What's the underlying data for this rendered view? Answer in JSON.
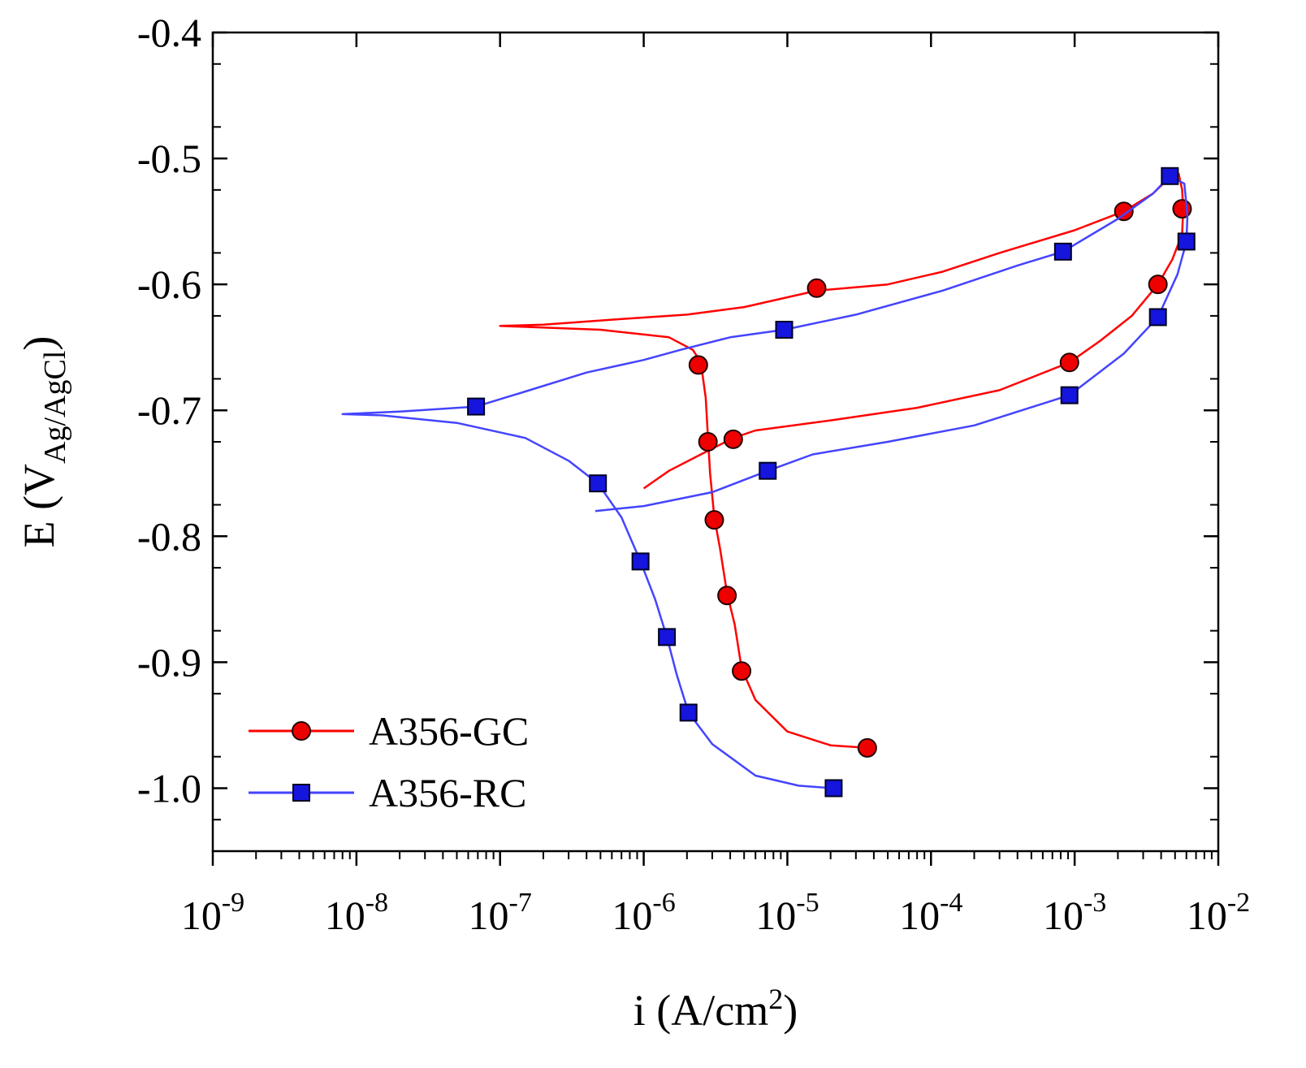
{
  "chart_data": {
    "type": "line",
    "title": "",
    "xlabel": "i (A/cm2)",
    "xlabel_parts": {
      "base": "i (A/cm",
      "sup": "2",
      "close": ")"
    },
    "ylabel": "E (VAg/AgCl)",
    "ylabel_parts": {
      "base": "E (V",
      "sub": "Ag/AgCl",
      "close": ")"
    },
    "x_scale": "log",
    "xlim": [
      1e-09,
      0.01
    ],
    "ylim": [
      -1.05,
      -0.4
    ],
    "x_ticks": [
      {
        "base": "10",
        "exp": "-9",
        "value": 1e-09
      },
      {
        "base": "10",
        "exp": "-8",
        "value": 1e-08
      },
      {
        "base": "10",
        "exp": "-7",
        "value": 1e-07
      },
      {
        "base": "10",
        "exp": "-6",
        "value": 1e-06
      },
      {
        "base": "10",
        "exp": "-5",
        "value": 1e-05
      },
      {
        "base": "10",
        "exp": "-4",
        "value": 0.0001
      },
      {
        "base": "10",
        "exp": "-3",
        "value": 0.001
      },
      {
        "base": "10",
        "exp": "-2",
        "value": 0.01
      }
    ],
    "y_ticks": [
      {
        "label": "-0.4",
        "value": -0.4
      },
      {
        "label": "-0.5",
        "value": -0.5
      },
      {
        "label": "-0.6",
        "value": -0.6
      },
      {
        "label": "-0.7",
        "value": -0.7
      },
      {
        "label": "-0.8",
        "value": -0.8
      },
      {
        "label": "-0.9",
        "value": -0.9
      },
      {
        "label": "-1.0",
        "value": -1.0
      }
    ],
    "legend_position": "bottom-left",
    "series": [
      {
        "name": "A356-GC",
        "color": "#ff0000",
        "marker": "circle",
        "marker_fill": "#ee0000",
        "curve": [
          [
            3.6e-05,
            -0.968
          ],
          [
            2e-05,
            -0.966
          ],
          [
            1e-05,
            -0.955
          ],
          [
            6e-06,
            -0.93
          ],
          [
            4.8e-06,
            -0.905
          ],
          [
            4.3e-06,
            -0.87
          ],
          [
            3.8e-06,
            -0.845
          ],
          [
            3.4e-06,
            -0.81
          ],
          [
            3.1e-06,
            -0.785
          ],
          [
            2.9e-06,
            -0.75
          ],
          [
            2.8e-06,
            -0.722
          ],
          [
            2.7e-06,
            -0.69
          ],
          [
            2.5e-06,
            -0.662
          ],
          [
            2.2e-06,
            -0.652
          ],
          [
            1.5e-06,
            -0.642
          ],
          [
            5e-07,
            -0.636
          ],
          [
            1e-07,
            -0.633
          ],
          [
            2e-07,
            -0.632
          ],
          [
            6e-07,
            -0.628
          ],
          [
            2e-06,
            -0.624
          ],
          [
            5e-06,
            -0.618
          ],
          [
            1.6e-05,
            -0.605
          ],
          [
            5e-05,
            -0.6
          ],
          [
            0.00012,
            -0.59
          ],
          [
            0.0003,
            -0.575
          ],
          [
            0.001,
            -0.557
          ],
          [
            0.0022,
            -0.542
          ],
          [
            0.0035,
            -0.528
          ],
          [
            0.0046,
            -0.515
          ],
          [
            0.0053,
            -0.512
          ],
          [
            0.0056,
            -0.525
          ],
          [
            0.0057,
            -0.54
          ],
          [
            0.0056,
            -0.56
          ],
          [
            0.0048,
            -0.58
          ],
          [
            0.0038,
            -0.6
          ],
          [
            0.0025,
            -0.625
          ],
          [
            0.0015,
            -0.645
          ],
          [
            0.00092,
            -0.662
          ],
          [
            0.0003,
            -0.684
          ],
          [
            8e-05,
            -0.698
          ],
          [
            2e-05,
            -0.708
          ],
          [
            6e-06,
            -0.716
          ],
          [
            4.2e-06,
            -0.722
          ],
          [
            2.5e-06,
            -0.735
          ],
          [
            1.5e-06,
            -0.748
          ],
          [
            1e-06,
            -0.762
          ]
        ],
        "markers": [
          [
            3.6e-05,
            -0.968
          ],
          [
            4.8e-06,
            -0.907
          ],
          [
            3.8e-06,
            -0.847
          ],
          [
            3.1e-06,
            -0.787
          ],
          [
            2.8e-06,
            -0.725
          ],
          [
            2.4e-06,
            -0.664
          ],
          [
            1.6e-05,
            -0.603
          ],
          [
            0.0022,
            -0.542
          ],
          [
            0.0056,
            -0.54
          ],
          [
            0.0038,
            -0.6
          ],
          [
            0.00092,
            -0.662
          ],
          [
            4.2e-06,
            -0.723
          ]
        ]
      },
      {
        "name": "A356-RC",
        "color": "#4444ff",
        "marker": "square",
        "marker_fill": "#1515dd",
        "curve": [
          [
            2.1e-05,
            -1.0
          ],
          [
            1.2e-05,
            -0.998
          ],
          [
            6e-06,
            -0.99
          ],
          [
            3e-06,
            -0.965
          ],
          [
            2.05e-06,
            -0.94
          ],
          [
            1.7e-06,
            -0.91
          ],
          [
            1.45e-06,
            -0.88
          ],
          [
            1.2e-06,
            -0.85
          ],
          [
            9.5e-07,
            -0.82
          ],
          [
            7e-07,
            -0.785
          ],
          [
            4.8e-07,
            -0.758
          ],
          [
            3e-07,
            -0.74
          ],
          [
            1.5e-07,
            -0.722
          ],
          [
            5e-08,
            -0.71
          ],
          [
            1.5e-08,
            -0.704
          ],
          [
            8e-09,
            -0.703
          ],
          [
            2e-08,
            -0.701
          ],
          [
            6.8e-08,
            -0.697
          ],
          [
            1.5e-07,
            -0.685
          ],
          [
            4e-07,
            -0.67
          ],
          [
            1e-06,
            -0.66
          ],
          [
            1.8e-06,
            -0.652
          ],
          [
            4e-06,
            -0.642
          ],
          [
            9.5e-06,
            -0.636
          ],
          [
            3e-05,
            -0.624
          ],
          [
            0.00012,
            -0.605
          ],
          [
            0.0004,
            -0.585
          ],
          [
            0.00083,
            -0.574
          ],
          [
            0.002,
            -0.548
          ],
          [
            0.0035,
            -0.528
          ],
          [
            0.0046,
            -0.514
          ],
          [
            0.0058,
            -0.52
          ],
          [
            0.0061,
            -0.545
          ],
          [
            0.006,
            -0.566
          ],
          [
            0.0052,
            -0.592
          ],
          [
            0.0038,
            -0.626
          ],
          [
            0.0022,
            -0.655
          ],
          [
            0.00092,
            -0.688
          ],
          [
            0.0002,
            -0.712
          ],
          [
            5e-05,
            -0.725
          ],
          [
            1.5e-05,
            -0.735
          ],
          [
            7.3e-06,
            -0.748
          ],
          [
            3e-06,
            -0.765
          ],
          [
            1e-06,
            -0.776
          ],
          [
            4.6e-07,
            -0.78
          ]
        ],
        "markers": [
          [
            2.1e-05,
            -1.0
          ],
          [
            2.05e-06,
            -0.94
          ],
          [
            1.45e-06,
            -0.88
          ],
          [
            9.5e-07,
            -0.82
          ],
          [
            4.8e-07,
            -0.758
          ],
          [
            6.8e-08,
            -0.697
          ],
          [
            9.5e-06,
            -0.636
          ],
          [
            0.00083,
            -0.574
          ],
          [
            0.0046,
            -0.514
          ],
          [
            0.006,
            -0.566
          ],
          [
            0.0038,
            -0.626
          ],
          [
            0.00092,
            -0.688
          ],
          [
            7.3e-06,
            -0.748
          ]
        ]
      }
    ]
  }
}
